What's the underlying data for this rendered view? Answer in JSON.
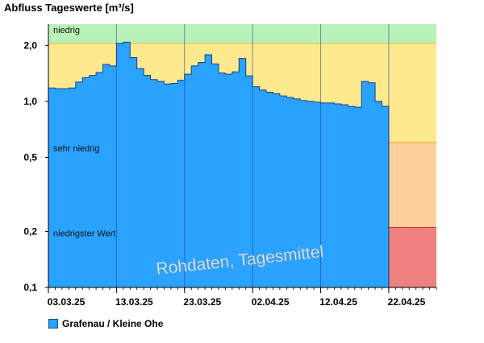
{
  "chart_data": {
    "type": "area",
    "title": "Abfluss Tageswerte [m³/s]",
    "yscale": "log",
    "ylim": [
      0.1,
      2.6
    ],
    "yticks": [
      {
        "value": 0.1,
        "label": "0,1"
      },
      {
        "value": 0.2,
        "label": "0,2"
      },
      {
        "value": 0.5,
        "label": "0,5"
      },
      {
        "value": 1.0,
        "label": "1,0"
      },
      {
        "value": 2.0,
        "label": "2,0"
      }
    ],
    "xlim": [
      "2025-03-03",
      "2025-04-29"
    ],
    "xticks": [
      {
        "date": "2025-03-03",
        "label": "03.03.25"
      },
      {
        "date": "2025-03-13",
        "label": "13.03.25"
      },
      {
        "date": "2025-03-23",
        "label": "23.03.25"
      },
      {
        "date": "2025-04-02",
        "label": "02.04.25"
      },
      {
        "date": "2025-04-12",
        "label": "12.04.25"
      },
      {
        "date": "2025-04-22",
        "label": "22.04.25"
      }
    ],
    "bands": [
      {
        "label": "niedrig",
        "from": 2.05,
        "to": 2.6,
        "color": "#b9f2b9"
      },
      {
        "label": "",
        "from": 0.6,
        "to": 2.05,
        "color": "#ffe98f"
      },
      {
        "label": "sehr niedrig",
        "from": 0.21,
        "to": 0.6,
        "color": "#ffd09a"
      },
      {
        "label": "niedrigster Wert",
        "from": 0.1,
        "to": 0.21,
        "color": "#ef8080"
      }
    ],
    "forecast_start": "2025-04-22",
    "series": [
      {
        "name": "Grafenau / Kleine Ohe",
        "color": "#29a3ff",
        "x": [
          "2025-03-03",
          "2025-03-04",
          "2025-03-05",
          "2025-03-06",
          "2025-03-07",
          "2025-03-08",
          "2025-03-09",
          "2025-03-10",
          "2025-03-11",
          "2025-03-12",
          "2025-03-13",
          "2025-03-14",
          "2025-03-15",
          "2025-03-16",
          "2025-03-17",
          "2025-03-18",
          "2025-03-19",
          "2025-03-20",
          "2025-03-21",
          "2025-03-22",
          "2025-03-23",
          "2025-03-24",
          "2025-03-25",
          "2025-03-26",
          "2025-03-27",
          "2025-03-28",
          "2025-03-29",
          "2025-03-30",
          "2025-03-31",
          "2025-04-01",
          "2025-04-02",
          "2025-04-03",
          "2025-04-04",
          "2025-04-05",
          "2025-04-06",
          "2025-04-07",
          "2025-04-08",
          "2025-04-09",
          "2025-04-10",
          "2025-04-11",
          "2025-04-12",
          "2025-04-13",
          "2025-04-14",
          "2025-04-15",
          "2025-04-16",
          "2025-04-17",
          "2025-04-18",
          "2025-04-19",
          "2025-04-20",
          "2025-04-21"
        ],
        "values": [
          1.18,
          1.17,
          1.17,
          1.18,
          1.27,
          1.34,
          1.38,
          1.43,
          1.58,
          1.55,
          2.05,
          2.08,
          1.72,
          1.5,
          1.38,
          1.31,
          1.28,
          1.24,
          1.25,
          1.3,
          1.4,
          1.55,
          1.62,
          1.78,
          1.59,
          1.42,
          1.4,
          1.44,
          1.7,
          1.37,
          1.2,
          1.15,
          1.12,
          1.1,
          1.07,
          1.05,
          1.03,
          1.01,
          1.0,
          0.99,
          0.98,
          0.98,
          0.97,
          0.96,
          0.94,
          0.93,
          1.28,
          1.26,
          1.0,
          0.94
        ]
      }
    ],
    "annotations": [
      "Rohdaten, Tagesmittel"
    ]
  }
}
